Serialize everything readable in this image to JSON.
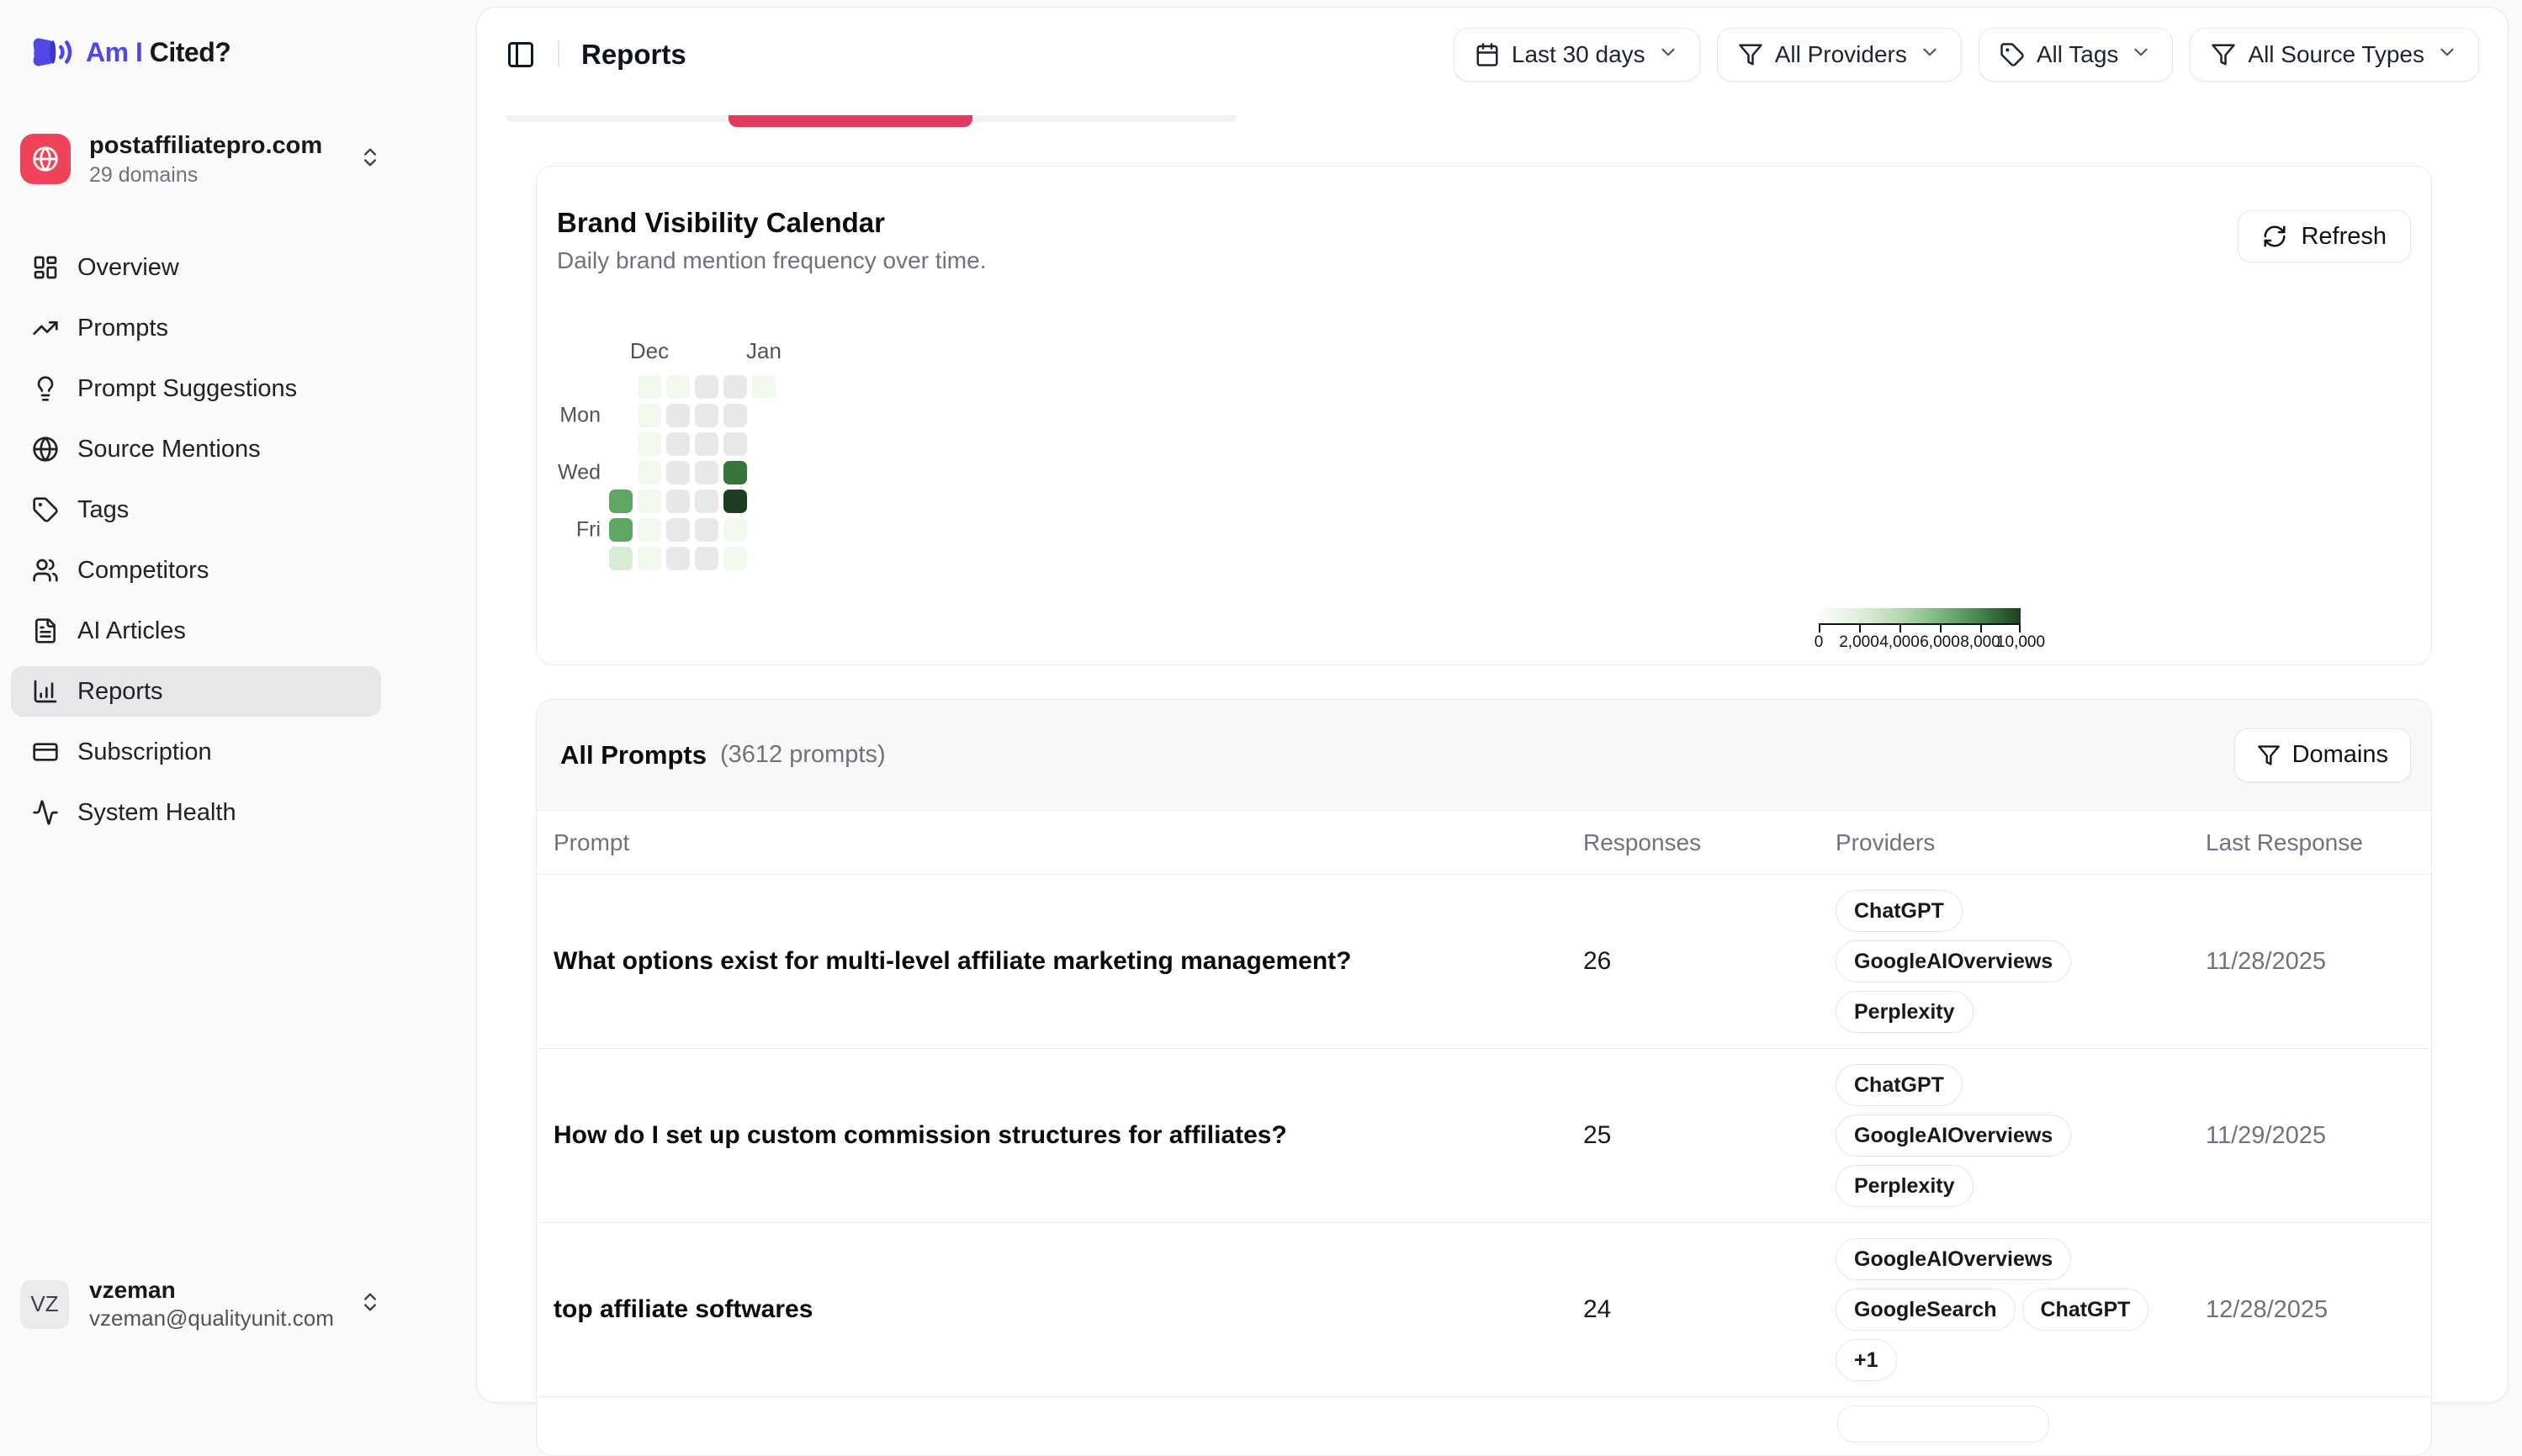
{
  "app": {
    "brand_accent": "Am I",
    "brand_rest": "Cited?"
  },
  "workspace": {
    "name": "postaffiliatepro.com",
    "meta": "29 domains",
    "icon": "globe"
  },
  "sidebar": {
    "items": [
      {
        "label": "Overview",
        "icon": "layout-dashboard",
        "active": false
      },
      {
        "label": "Prompts",
        "icon": "trending-up",
        "active": false
      },
      {
        "label": "Prompt Suggestions",
        "icon": "lightbulb",
        "active": false
      },
      {
        "label": "Source Mentions",
        "icon": "globe",
        "active": false
      },
      {
        "label": "Tags",
        "icon": "tag",
        "active": false
      },
      {
        "label": "Competitors",
        "icon": "users",
        "active": false
      },
      {
        "label": "AI Articles",
        "icon": "file-text",
        "active": false
      },
      {
        "label": "Reports",
        "icon": "chart-column",
        "active": true
      },
      {
        "label": "Subscription",
        "icon": "credit-card",
        "active": false
      },
      {
        "label": "System Health",
        "icon": "activity",
        "active": false
      }
    ]
  },
  "user": {
    "initials": "VZ",
    "name": "vzeman",
    "email": "vzeman@qualityunit.com"
  },
  "header": {
    "title": "Reports",
    "filters": [
      {
        "label": "Last 30 days",
        "icon": "calendar"
      },
      {
        "label": "All Providers",
        "icon": "funnel"
      },
      {
        "label": "All Tags",
        "icon": "tag"
      },
      {
        "label": "All Source Types",
        "icon": "funnel"
      }
    ]
  },
  "calendar_card": {
    "title": "Brand Visibility Calendar",
    "subtitle": "Daily brand mention frequency over time.",
    "refresh_label": "Refresh"
  },
  "prompts_card": {
    "title": "All Prompts",
    "count_label": "(3612 prompts)",
    "domains_label": "Domains",
    "columns": [
      "Prompt",
      "Responses",
      "Providers",
      "Last Response"
    ],
    "rows": [
      {
        "prompt": "What options exist for multi-level affiliate marketing management?",
        "responses": "26",
        "providers": [
          "ChatGPT",
          "GoogleAIOverviews",
          "Perplexity"
        ],
        "last_response": "11/28/2025"
      },
      {
        "prompt": "How do I set up custom commission structures for affiliates?",
        "responses": "25",
        "providers": [
          "ChatGPT",
          "GoogleAIOverviews",
          "Perplexity"
        ],
        "last_response": "11/29/2025"
      },
      {
        "prompt": "top affiliate softwares",
        "responses": "24",
        "providers": [
          "GoogleAIOverviews",
          "GoogleSearch",
          "ChatGPT",
          "+1"
        ],
        "last_response": "12/28/2025"
      }
    ]
  },
  "colors": {
    "accent": "#5147e5",
    "workspace_tile": "#ee4358",
    "tab_strip_red": "#e23a5d",
    "heat_palette": {
      "empty": "#e8e8ea",
      "l1": "#f1f8ee",
      "l2": "#d8ebd3",
      "l3": "#5fa563",
      "l4": "#38743b",
      "l5": "#1e3d22"
    }
  },
  "chart_data": {
    "type": "heatmap",
    "title": "Brand Visibility Calendar",
    "description": "Daily brand mention frequency; columns are weeks (rows Sun-Sat), gray = no data",
    "month_labels": [
      {
        "label": "Dec",
        "week": 1
      },
      {
        "label": "Jan",
        "week": 5
      }
    ],
    "day_labels": [
      {
        "label": "Mon",
        "row": 1
      },
      {
        "label": "Wed",
        "row": 3
      },
      {
        "label": "Fri",
        "row": 5
      }
    ],
    "scale": {
      "min": 0,
      "max": 10000,
      "tick_labels": [
        "0",
        "2,000",
        "4,000",
        "6,000",
        "8,000",
        "10,000"
      ]
    },
    "weeks": [
      [
        null,
        null,
        null,
        null,
        5000,
        5000,
        2000
      ],
      [
        500,
        500,
        500,
        500,
        500,
        500,
        500
      ],
      [
        500,
        0,
        0,
        0,
        0,
        0,
        0
      ],
      [
        0,
        0,
        0,
        0,
        0,
        0,
        0
      ],
      [
        0,
        0,
        0,
        7500,
        10000,
        500,
        500
      ],
      [
        500,
        null,
        null,
        null,
        null,
        null,
        null
      ]
    ]
  }
}
